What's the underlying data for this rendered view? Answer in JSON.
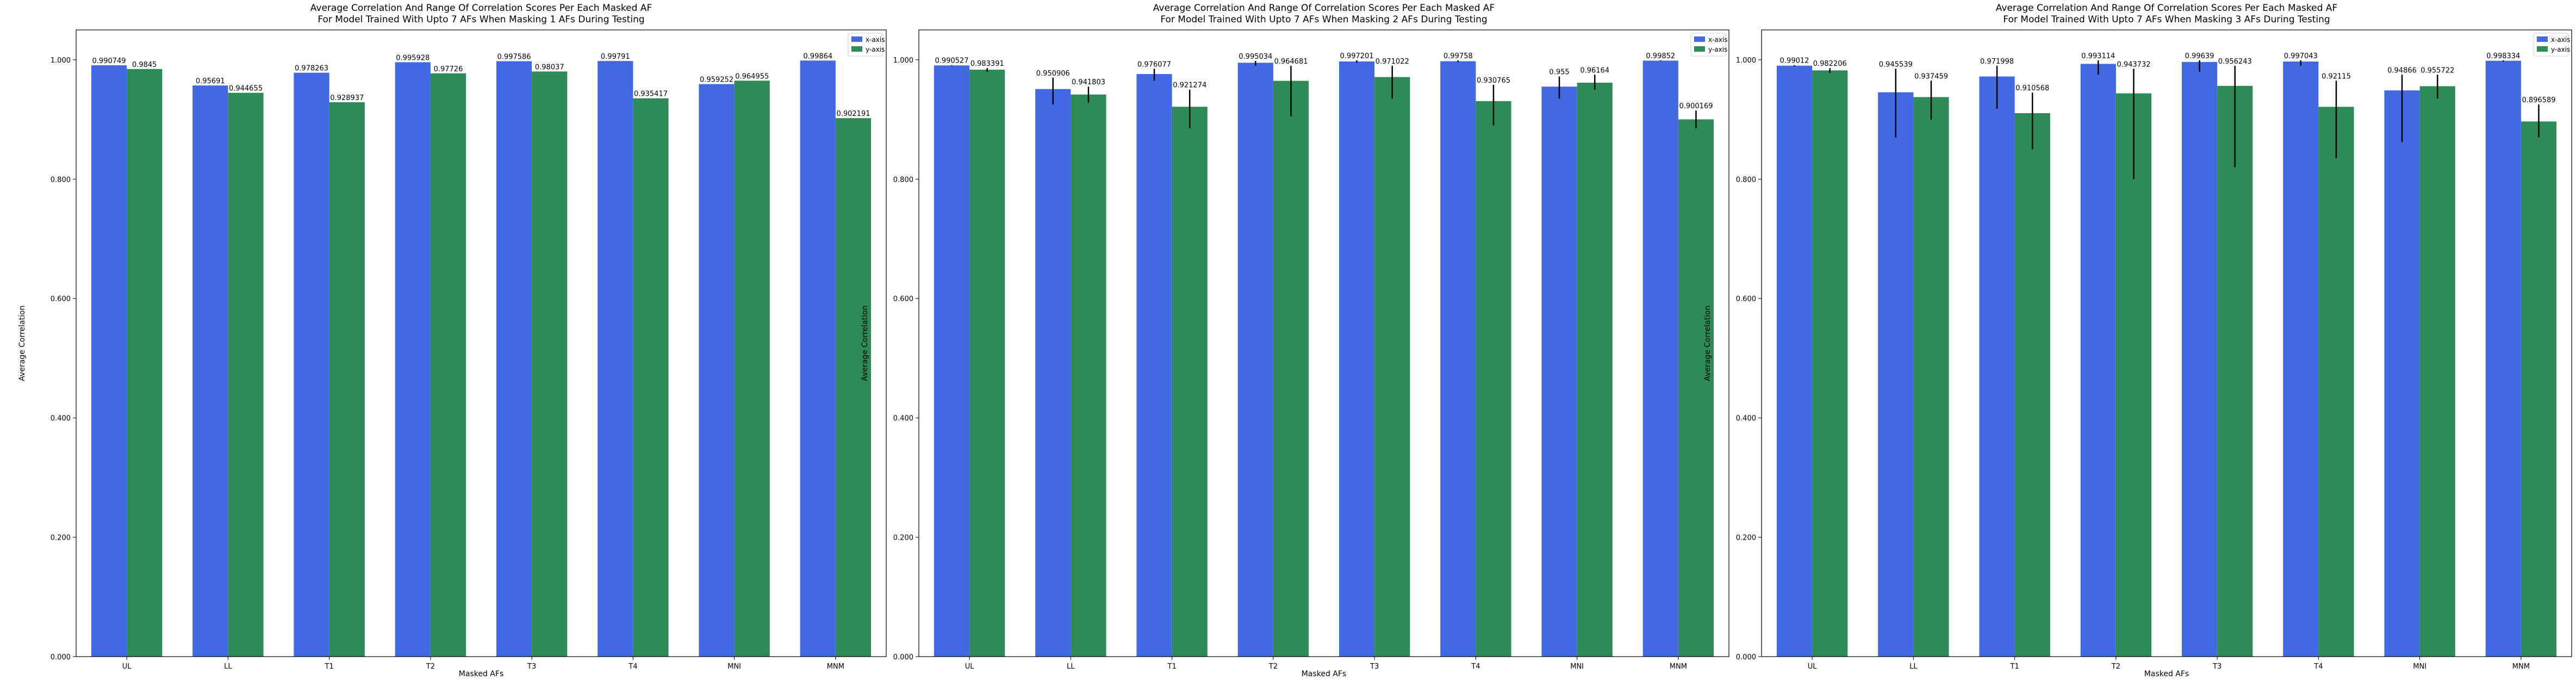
{
  "chart_data": [
    {
      "type": "bar",
      "title_line1": "Average Correlation And Range Of Correlation Scores Per Each Masked AF",
      "title_line2": "For Model Trained With Upto 7 AFs When Masking 1 AFs During Testing",
      "xlabel": "Masked AFs",
      "ylabel": "Average Correlation",
      "ylim": [
        0,
        1.05
      ],
      "yticks": [
        "0.000",
        "0.200",
        "0.400",
        "0.600",
        "0.800",
        "1.000"
      ],
      "categories": [
        "UL",
        "LL",
        "T1",
        "T2",
        "T3",
        "T4",
        "MNI",
        "MNM"
      ],
      "legend_position": "top-right",
      "series": [
        {
          "name": "x-axis",
          "color": "#4169e1",
          "values": [
            0.990749,
            0.95691,
            0.978263,
            0.995928,
            0.997586,
            0.99791,
            0.959252,
            0.99864
          ],
          "labels": [
            "0.990749",
            "0.95691",
            "0.978263",
            "0.995928",
            "0.997586",
            "0.99791",
            "0.959252",
            "0.99864"
          ],
          "err_low": [
            0.990749,
            0.95691,
            0.978263,
            0.995928,
            0.997586,
            0.99791,
            0.959252,
            0.99864
          ],
          "err_high": [
            0.990749,
            0.95691,
            0.978263,
            0.995928,
            0.997586,
            0.99791,
            0.959252,
            0.99864
          ]
        },
        {
          "name": "y-axis",
          "color": "#2e8b57",
          "values": [
            0.9845,
            0.944655,
            0.928937,
            0.97726,
            0.98037,
            0.935417,
            0.964955,
            0.902191
          ],
          "labels": [
            "0.9845",
            "0.944655",
            "0.928937",
            "0.97726",
            "0.98037",
            "0.935417",
            "0.964955",
            "0.902191"
          ],
          "err_low": [
            0.9845,
            0.944655,
            0.928937,
            0.97726,
            0.98037,
            0.935417,
            0.964955,
            0.902191
          ],
          "err_high": [
            0.9845,
            0.944655,
            0.928937,
            0.97726,
            0.98037,
            0.935417,
            0.964955,
            0.902191
          ]
        }
      ]
    },
    {
      "type": "bar",
      "title_line1": "Average Correlation And Range Of Correlation Scores Per Each Masked AF",
      "title_line2": "For Model Trained With Upto 7 AFs When Masking 2 AFs During Testing",
      "xlabel": "Masked AFs",
      "ylabel": "Average Correlation",
      "ylim": [
        0,
        1.05
      ],
      "yticks": [
        "0.000",
        "0.200",
        "0.400",
        "0.600",
        "0.800",
        "1.000"
      ],
      "categories": [
        "UL",
        "LL",
        "T1",
        "T2",
        "T3",
        "T4",
        "MNI",
        "MNM"
      ],
      "legend_position": "top-right",
      "series": [
        {
          "name": "x-axis",
          "color": "#4169e1",
          "values": [
            0.990527,
            0.950906,
            0.976077,
            0.995034,
            0.997201,
            0.99758,
            0.955,
            0.99852
          ],
          "labels": [
            "0.990527",
            "0.950906",
            "0.976077",
            "0.995034",
            "0.997201",
            "0.99758",
            "0.955",
            "0.99852"
          ],
          "err_low": [
            0.99,
            0.925,
            0.965,
            0.99,
            0.995,
            0.996,
            0.935,
            0.998
          ],
          "err_high": [
            0.991,
            0.97,
            0.985,
            0.998,
            0.999,
            0.999,
            0.972,
            0.999
          ]
        },
        {
          "name": "y-axis",
          "color": "#2e8b57",
          "values": [
            0.983391,
            0.941803,
            0.921274,
            0.964681,
            0.971022,
            0.930765,
            0.96164,
            0.900169
          ],
          "labels": [
            "0.983391",
            "0.941803",
            "0.921274",
            "0.964681",
            "0.971022",
            "0.930765",
            "0.96164",
            "0.900169"
          ],
          "err_low": [
            0.98,
            0.928,
            0.885,
            0.905,
            0.935,
            0.89,
            0.95,
            0.885
          ],
          "err_high": [
            0.986,
            0.955,
            0.95,
            0.99,
            0.99,
            0.958,
            0.975,
            0.915
          ]
        }
      ]
    },
    {
      "type": "bar",
      "title_line1": "Average Correlation And Range Of Correlation Scores Per Each Masked AF",
      "title_line2": "For Model Trained With Upto 7 AFs When Masking 3 AFs During Testing",
      "xlabel": "Masked AFs",
      "ylabel": "Average Correlation",
      "ylim": [
        0,
        1.05
      ],
      "yticks": [
        "0.000",
        "0.200",
        "0.400",
        "0.600",
        "0.800",
        "1.000"
      ],
      "categories": [
        "UL",
        "LL",
        "T1",
        "T2",
        "T3",
        "T4",
        "MNI",
        "MNM"
      ],
      "legend_position": "top-right",
      "series": [
        {
          "name": "x-axis",
          "color": "#4169e1",
          "values": [
            0.99012,
            0.945539,
            0.971998,
            0.993114,
            0.99639,
            0.997043,
            0.94866,
            0.998334
          ],
          "labels": [
            "0.99012",
            "0.945539",
            "0.971998",
            "0.993114",
            "0.99639",
            "0.997043",
            "0.94866",
            "0.998334"
          ],
          "err_low": [
            0.989,
            0.87,
            0.918,
            0.975,
            0.98,
            0.99,
            0.862,
            0.997
          ],
          "err_high": [
            0.991,
            0.985,
            0.99,
            0.999,
            0.999,
            0.999,
            0.975,
            0.999
          ]
        },
        {
          "name": "y-axis",
          "color": "#2e8b57",
          "values": [
            0.982206,
            0.937459,
            0.910568,
            0.943732,
            0.956243,
            0.92115,
            0.955722,
            0.896589
          ],
          "labels": [
            "0.982206",
            "0.937459",
            "0.910568",
            "0.943732",
            "0.956243",
            "0.92115",
            "0.955722",
            "0.896589"
          ],
          "err_low": [
            0.978,
            0.9,
            0.85,
            0.8,
            0.82,
            0.835,
            0.935,
            0.87
          ],
          "err_high": [
            0.986,
            0.965,
            0.945,
            0.985,
            0.99,
            0.965,
            0.975,
            0.925
          ]
        }
      ]
    }
  ]
}
